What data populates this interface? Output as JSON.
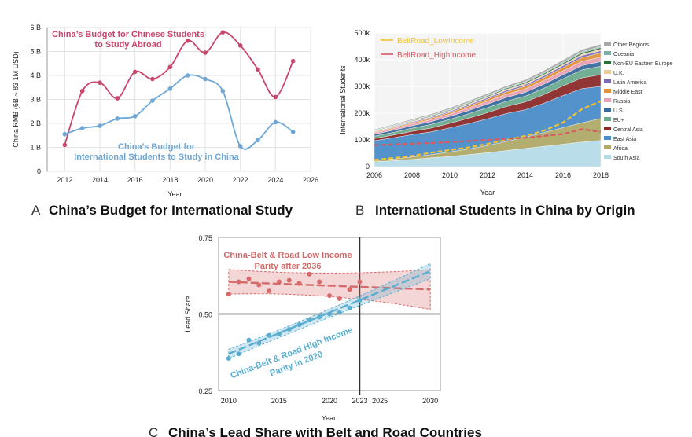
{
  "chart_data": [
    {
      "panel": "A",
      "type": "line",
      "title": "China’s Budget for International Study",
      "xlabel": "Year",
      "ylabel": "China RMB (6B ~ 83 1M USD)",
      "xlim": [
        2011,
        2026
      ],
      "ylim": [
        0,
        6
      ],
      "xticks": [
        "2012",
        "2014",
        "2016",
        "2018",
        "2020",
        "2022",
        "2024",
        "2026"
      ],
      "yticks": [
        "0",
        "1 B",
        "2 B",
        "3 B",
        "4 B",
        "5 B",
        "6 B"
      ],
      "grid": true,
      "series": [
        {
          "name": "China's Budget for Chinese Students to Study Abroad",
          "label_lines": [
            "China’s Budget for Chinese Students",
            "to Study Abroad"
          ],
          "color": "#c8456b",
          "x": [
            2012,
            2013,
            2014,
            2015,
            2016,
            2017,
            2018,
            2019,
            2020,
            2021,
            2022,
            2023,
            2024,
            2025
          ],
          "y": [
            1.1,
            3.35,
            3.7,
            3.05,
            4.15,
            3.85,
            4.35,
            5.45,
            4.95,
            5.8,
            5.25,
            4.25,
            3.1,
            4.6
          ]
        },
        {
          "name": "China's Budget for International Students to Study in China",
          "label_lines": [
            "China’s Budget for",
            "International Students to Study in China"
          ],
          "color": "#6fa8d6",
          "x": [
            2012,
            2013,
            2014,
            2015,
            2016,
            2017,
            2018,
            2019,
            2020,
            2021,
            2022,
            2023,
            2024,
            2025
          ],
          "y": [
            1.55,
            1.8,
            1.9,
            2.2,
            2.3,
            2.95,
            3.45,
            4.0,
            3.85,
            3.35,
            1.05,
            1.3,
            2.05,
            1.65
          ]
        }
      ]
    },
    {
      "panel": "B",
      "type": "area",
      "title": "International Students in China by Origin",
      "xlabel": "Year",
      "ylabel": "International Students",
      "xlim": [
        2006,
        2018
      ],
      "ylim": [
        0,
        500000
      ],
      "xticks": [
        "2006",
        "2008",
        "2010",
        "2012",
        "2014",
        "2016",
        "2018"
      ],
      "yticks": [
        "0",
        "100k",
        "200k",
        "300k",
        "400k",
        "500k"
      ],
      "x": [
        2006,
        2007,
        2008,
        2009,
        2010,
        2011,
        2012,
        2013,
        2014,
        2015,
        2016,
        2017,
        2018
      ],
      "series": [
        {
          "name": "South Asia",
          "color": "#b5dbe8",
          "values": [
            18000,
            22000,
            27000,
            33000,
            38000,
            45000,
            52000,
            60000,
            68000,
            76000,
            84000,
            92000,
            98000
          ]
        },
        {
          "name": "Africa",
          "color": "#b0a968",
          "values": [
            4000,
            6000,
            9000,
            12000,
            17000,
            21000,
            27000,
            34000,
            42000,
            52000,
            62000,
            72000,
            82000
          ]
        },
        {
          "name": "East Asia",
          "color": "#4a8cc7",
          "values": [
            75000,
            80000,
            84000,
            85000,
            90000,
            95000,
            100000,
            105000,
            103000,
            110000,
            120000,
            128000,
            120000
          ]
        },
        {
          "name": "Central Asia",
          "color": "#8b2a2a",
          "values": [
            8000,
            10000,
            12000,
            14000,
            17000,
            20000,
            23000,
            26000,
            29000,
            32000,
            36000,
            40000,
            44000
          ]
        },
        {
          "name": "EU+",
          "color": "#6aab8e",
          "values": [
            9000,
            10000,
            12000,
            14000,
            15000,
            17000,
            19000,
            20000,
            22000,
            24000,
            27000,
            30000,
            32000
          ]
        },
        {
          "name": "U.S.",
          "color": "#3a6a9c",
          "values": [
            7000,
            8000,
            9000,
            10000,
            11000,
            12000,
            13000,
            14000,
            14000,
            15000,
            15000,
            16000,
            17000
          ]
        },
        {
          "name": "Russia",
          "color": "#e8a0b4",
          "values": [
            5000,
            6000,
            7000,
            8000,
            9000,
            10000,
            11000,
            12000,
            13000,
            14000,
            15000,
            16000,
            17000
          ]
        },
        {
          "name": "Middle East",
          "color": "#e0913a",
          "values": [
            3000,
            3500,
            4000,
            5000,
            6000,
            7000,
            8000,
            9000,
            10000,
            11000,
            12000,
            14000,
            16000
          ]
        },
        {
          "name": "Latin America",
          "color": "#7a6ab8",
          "values": [
            2000,
            2500,
            3000,
            3500,
            4000,
            4500,
            5000,
            5500,
            6000,
            6500,
            7000,
            7500,
            8000
          ]
        },
        {
          "name": "U.K.",
          "color": "#f0c89a",
          "values": [
            2000,
            2200,
            2500,
            2800,
            3000,
            3200,
            3500,
            3800,
            4000,
            4200,
            4500,
            5000,
            5500
          ]
        },
        {
          "name": "Non-EU Eastern Europe",
          "color": "#2e6e3c",
          "values": [
            2000,
            2200,
            2500,
            2800,
            3000,
            3300,
            3600,
            4000,
            4300,
            4700,
            5000,
            5500,
            6000
          ]
        },
        {
          "name": "Oceania",
          "color": "#7ab0a6",
          "values": [
            1500,
            1700,
            1900,
            2100,
            2300,
            2500,
            2700,
            2900,
            3100,
            3300,
            3500,
            3700,
            4000
          ]
        },
        {
          "name": "Other Regions",
          "color": "#a8a8a8",
          "values": [
            3000,
            3500,
            4000,
            4500,
            5000,
            5500,
            6000,
            6500,
            7000,
            7500,
            8000,
            8500,
            9000
          ]
        }
      ],
      "lines": [
        {
          "name": "BeltRoad_LowIncome",
          "color": "#f2c232",
          "dash": true,
          "values": [
            25000,
            32000,
            40000,
            52000,
            62000,
            72000,
            85000,
            100000,
            115000,
            135000,
            165000,
            215000,
            245000
          ]
        },
        {
          "name": "BeltRoad_HighIncome",
          "color": "#d65a63",
          "dash": true,
          "values": [
            80000,
            83000,
            86000,
            88000,
            92000,
            96000,
            100000,
            104000,
            108000,
            115000,
            122000,
            140000,
            130000
          ]
        }
      ],
      "legend": "top-left"
    },
    {
      "panel": "C",
      "type": "scatter",
      "title": "China’s Lead Share with Belt and Road Countries",
      "xlabel": "Year",
      "ylabel": "Lead Share",
      "xlim": [
        2009,
        2031
      ],
      "ylim": [
        0.25,
        0.75
      ],
      "xticks": [
        "2010",
        "2015",
        "2020",
        "2023",
        "2025",
        "2030"
      ],
      "yticks": [
        "0.25",
        "0.50",
        "0.75"
      ],
      "reference_lines": {
        "x": 2023,
        "y": 0.5
      },
      "series": [
        {
          "name": "China-Belt & Road Low Income",
          "label_lines": [
            "China-Belt & Road Low Income",
            "Parity after 2036"
          ],
          "color": "#d66a6a",
          "x": [
            2010,
            2011,
            2012,
            2013,
            2014,
            2015,
            2016,
            2017,
            2018,
            2019,
            2020,
            2021,
            2022,
            2023
          ],
          "y": [
            0.565,
            0.605,
            0.615,
            0.595,
            0.575,
            0.605,
            0.61,
            0.6,
            0.63,
            0.605,
            0.56,
            0.55,
            0.58,
            0.605
          ],
          "fit": [
            [
              2010,
              0.605
            ],
            [
              2030,
              0.58
            ]
          ],
          "band": [
            [
              2010,
              0.645,
              0.565
            ],
            [
              2020,
              0.622,
              0.574
            ],
            [
              2030,
              0.645,
              0.515
            ]
          ]
        },
        {
          "name": "China-Belt & Road High Income",
          "label_lines": [
            "China-Belt & Road High Income",
            "Parity in 2020"
          ],
          "color": "#5aaed0",
          "x": [
            2010,
            2011,
            2012,
            2013,
            2014,
            2015,
            2016,
            2017,
            2018,
            2019,
            2020,
            2021,
            2022,
            2023
          ],
          "y": [
            0.355,
            0.37,
            0.415,
            0.405,
            0.43,
            0.435,
            0.45,
            0.465,
            0.48,
            0.49,
            0.5,
            0.505,
            0.52,
            0.545
          ],
          "fit": [
            [
              2010,
              0.37
            ],
            [
              2030,
              0.64
            ]
          ],
          "band": [
            [
              2010,
              0.385,
              0.355
            ],
            [
              2020,
              0.507,
              0.493
            ],
            [
              2030,
              0.665,
              0.615
            ]
          ]
        }
      ]
    }
  ]
}
